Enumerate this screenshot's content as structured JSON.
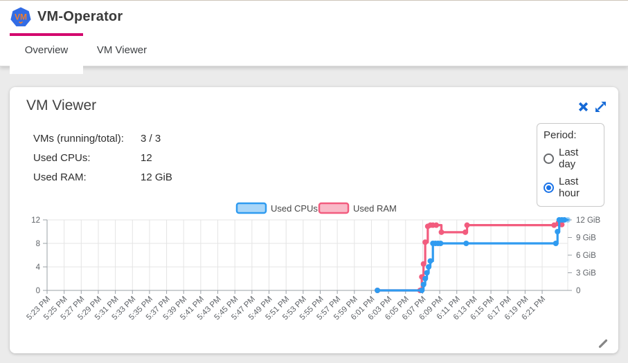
{
  "header": {
    "title": "VM-Operator",
    "logo_text": "VM"
  },
  "tabs": [
    {
      "label": "Overview",
      "active": true
    },
    {
      "label": "VM Viewer",
      "active": false
    }
  ],
  "card": {
    "title": "VM Viewer",
    "stats": [
      {
        "label": "VMs (running/total):",
        "value": "3 / 3"
      },
      {
        "label": "Used CPUs:",
        "value": "12"
      },
      {
        "label": "Used RAM:",
        "value": "12 GiB"
      }
    ],
    "period": {
      "label": "Period:",
      "options": [
        {
          "label": "Last day",
          "selected": false
        },
        {
          "label": "Last hour",
          "selected": true
        }
      ]
    }
  },
  "icons": {
    "close": "x-mark",
    "expand": "diagonal-expand-arrows",
    "resize": "diagonal-resize-grip"
  },
  "colors": {
    "accent_magenta": "#d3066e",
    "icon_blue": "#1569d6",
    "cpu_blue": "#2f9bf0",
    "cpu_blue_fill": "#a9d6f8",
    "ram_pink": "#f25c7e",
    "ram_pink_fill": "#f9bac8",
    "radio_selected": "#1a73e8",
    "grid": "#e4e4e4",
    "axis": "#9aa0a6",
    "tick_text": "#5f6368"
  },
  "chart_data": {
    "type": "line",
    "step": "end",
    "title": "",
    "legend_position": "top-center",
    "legend": [
      {
        "label": "Used CPUs"
      },
      {
        "label": "Used RAM"
      }
    ],
    "x_axis": {
      "tick_labels": [
        "5:23 PM",
        "5:25 PM",
        "5:27 PM",
        "5:29 PM",
        "5:31 PM",
        "5:33 PM",
        "5:35 PM",
        "5:37 PM",
        "5:39 PM",
        "5:41 PM",
        "5:43 PM",
        "5:45 PM",
        "5:47 PM",
        "5:49 PM",
        "5:51 PM",
        "5:53 PM",
        "5:55 PM",
        "5:57 PM",
        "5:59 PM",
        "6:01 PM",
        "6:03 PM",
        "6:05 PM",
        "6:07 PM",
        "6:09 PM",
        "6:11 PM",
        "6:13 PM",
        "6:15 PM",
        "6:17 PM",
        "6:19 PM",
        "6:21 PM"
      ],
      "tick_interval_minutes": 2,
      "domain_minutes": [
        0,
        61
      ]
    },
    "y_left": {
      "min": 0,
      "max": 12,
      "ticks": [
        0,
        4,
        8,
        12
      ],
      "label_for": "Used CPUs"
    },
    "y_right": {
      "min": 0,
      "max": 12,
      "ticks": [
        {
          "v": 0,
          "label": "0"
        },
        {
          "v": 3,
          "label": "3 GiB"
        },
        {
          "v": 6,
          "label": "6 GiB"
        },
        {
          "v": 9,
          "label": "9 GiB"
        },
        {
          "v": 12,
          "label": "12 GiB"
        }
      ],
      "label_for": "Used RAM"
    },
    "series": [
      {
        "name": "Used RAM",
        "axis": "right",
        "color_key": "ram_pink",
        "last_point_faded": false,
        "points": [
          [
            38.7,
            0
          ],
          [
            43.7,
            0
          ],
          [
            43.9,
            2.3
          ],
          [
            44.1,
            4.5
          ],
          [
            44.3,
            8.2
          ],
          [
            44.6,
            10.9
          ],
          [
            44.9,
            11.1
          ],
          [
            45.2,
            11.1
          ],
          [
            45.6,
            11.1
          ],
          [
            46.2,
            9.9
          ],
          [
            49.0,
            9.9
          ],
          [
            49.2,
            11.1
          ],
          [
            59.4,
            11.1
          ],
          [
            59.9,
            11.5
          ],
          [
            60.3,
            11.2
          ]
        ]
      },
      {
        "name": "Used CPUs",
        "axis": "left",
        "color_key": "cpu_blue",
        "last_point_faded": true,
        "points": [
          [
            38.7,
            0
          ],
          [
            43.9,
            0
          ],
          [
            44.1,
            1
          ],
          [
            44.3,
            2
          ],
          [
            44.5,
            3
          ],
          [
            44.7,
            4
          ],
          [
            44.9,
            5
          ],
          [
            45.2,
            8
          ],
          [
            45.5,
            8
          ],
          [
            45.8,
            8
          ],
          [
            46.1,
            8
          ],
          [
            49.1,
            8
          ],
          [
            59.6,
            8
          ],
          [
            59.8,
            10
          ],
          [
            60.0,
            12
          ],
          [
            60.3,
            12
          ],
          [
            60.6,
            12
          ],
          [
            61.0,
            12
          ]
        ]
      }
    ]
  }
}
